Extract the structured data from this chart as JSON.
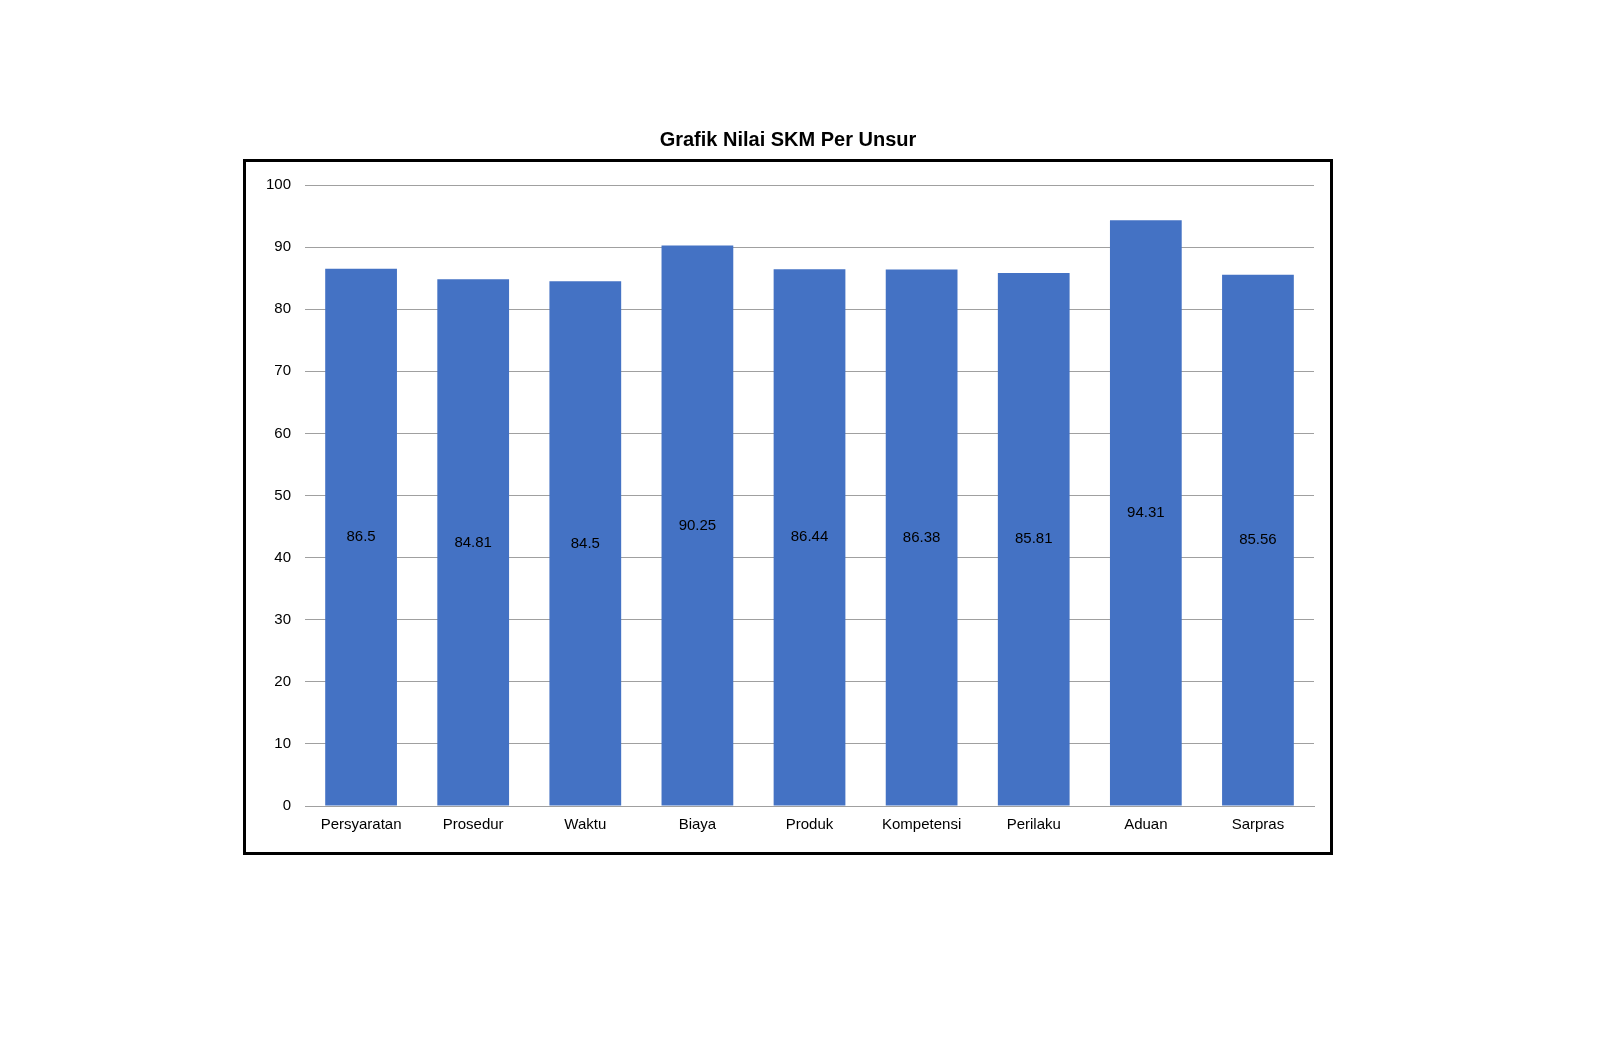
{
  "chart_data": {
    "type": "bar",
    "title": "Grafik Nilai SKM Per Unsur",
    "categories": [
      "Persyaratan",
      "Prosedur",
      "Waktu",
      "Biaya",
      "Produk",
      "Kompetensi",
      "Perilaku",
      "Aduan",
      "Sarpras"
    ],
    "values": [
      86.5,
      84.81,
      84.5,
      90.25,
      86.44,
      86.38,
      85.81,
      94.31,
      85.56
    ],
    "color": "#4472c4",
    "ylim": [
      0,
      100
    ],
    "yticks": [
      0,
      10,
      20,
      30,
      40,
      50,
      60,
      70,
      80,
      90,
      100
    ],
    "grid": "y",
    "data_labels": true
  }
}
